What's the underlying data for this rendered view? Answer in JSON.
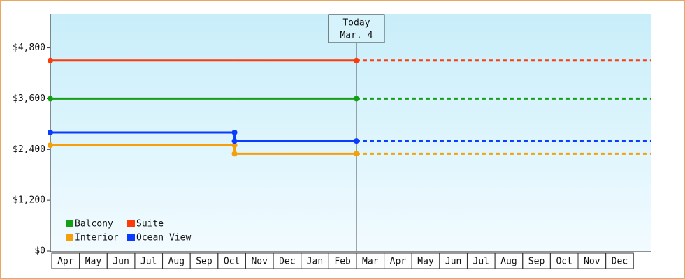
{
  "chart_data": {
    "type": "step-line",
    "categories": [
      "Apr",
      "May",
      "Jun",
      "Jul",
      "Aug",
      "Sep",
      "Oct",
      "Nov",
      "Dec",
      "Jan",
      "Feb",
      "Mar",
      "Apr",
      "May",
      "Jun",
      "Jul",
      "Aug",
      "Sep",
      "Oct",
      "Nov",
      "Dec"
    ],
    "x": [
      0,
      6.65,
      11.05
    ],
    "xlim": [
      0,
      21.7
    ],
    "ylim": [
      0,
      5600
    ],
    "yticks": [
      {
        "value": 0,
        "label": "$0"
      },
      {
        "value": 1200,
        "label": "$1,200"
      },
      {
        "value": 2400,
        "label": "$2,400"
      },
      {
        "value": 3600,
        "label": "$3,600"
      },
      {
        "value": 4800,
        "label": "$4,800"
      }
    ],
    "series": [
      {
        "name": "Balcony",
        "color": "#14a014",
        "values": [
          3600,
          3600,
          3600
        ]
      },
      {
        "name": "Suite",
        "color": "#ff3a0a",
        "values": [
          4500,
          4500,
          4500
        ]
      },
      {
        "name": "Interior",
        "color": "#f5a00a",
        "values": [
          2500,
          2300,
          2300
        ]
      },
      {
        "name": "Ocean View",
        "color": "#0a3cff",
        "values": [
          2800,
          2600,
          2600
        ]
      }
    ],
    "annotation": {
      "title": "Today",
      "date": "Mar. 4",
      "x": 11.05
    }
  }
}
